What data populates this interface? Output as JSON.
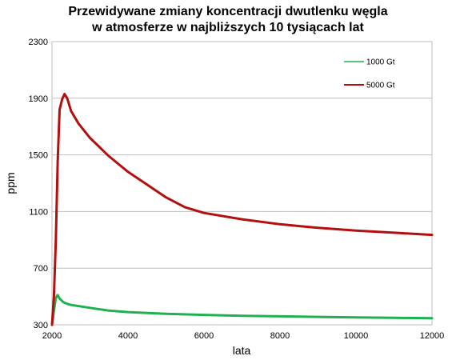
{
  "chart_data": {
    "type": "line",
    "title_lines": [
      "Przewidywane zmiany koncentracji dwutlenku węgla",
      "w atmosferze w najbliższych 10 tysiącach lat"
    ],
    "xlabel": "lata",
    "ylabel": "ppm",
    "xlim": [
      2000,
      12000
    ],
    "ylim": [
      300,
      2300
    ],
    "x_ticks": [
      2000,
      4000,
      6000,
      8000,
      10000,
      12000
    ],
    "y_ticks": [
      300,
      700,
      1100,
      1500,
      1900,
      2300
    ],
    "grid": "horizontal",
    "legend_position": "top-right",
    "series": [
      {
        "name": "1000 Gt",
        "color": "#1fb050",
        "points": [
          [
            2000,
            300
          ],
          [
            2050,
            400
          ],
          [
            2100,
            490
          ],
          [
            2150,
            510
          ],
          [
            2200,
            485
          ],
          [
            2300,
            460
          ],
          [
            2400,
            448
          ],
          [
            2500,
            440
          ],
          [
            3000,
            420
          ],
          [
            3500,
            400
          ],
          [
            4000,
            390
          ],
          [
            5000,
            378
          ],
          [
            6000,
            370
          ],
          [
            7000,
            364
          ],
          [
            8000,
            360
          ],
          [
            9000,
            356
          ],
          [
            10000,
            352
          ],
          [
            11000,
            349
          ],
          [
            12000,
            347
          ]
        ]
      },
      {
        "name": "5000 Gt",
        "color": "#b40e0e",
        "points": [
          [
            2000,
            300
          ],
          [
            2050,
            500
          ],
          [
            2100,
            900
          ],
          [
            2150,
            1450
          ],
          [
            2200,
            1820
          ],
          [
            2270,
            1895
          ],
          [
            2330,
            1930
          ],
          [
            2400,
            1900
          ],
          [
            2500,
            1810
          ],
          [
            2700,
            1720
          ],
          [
            3000,
            1620
          ],
          [
            3500,
            1490
          ],
          [
            4000,
            1380
          ],
          [
            4500,
            1290
          ],
          [
            5000,
            1200
          ],
          [
            5500,
            1130
          ],
          [
            6000,
            1090
          ],
          [
            7000,
            1045
          ],
          [
            8000,
            1010
          ],
          [
            9000,
            985
          ],
          [
            10000,
            965
          ],
          [
            11000,
            950
          ],
          [
            12000,
            935
          ]
        ]
      }
    ]
  }
}
